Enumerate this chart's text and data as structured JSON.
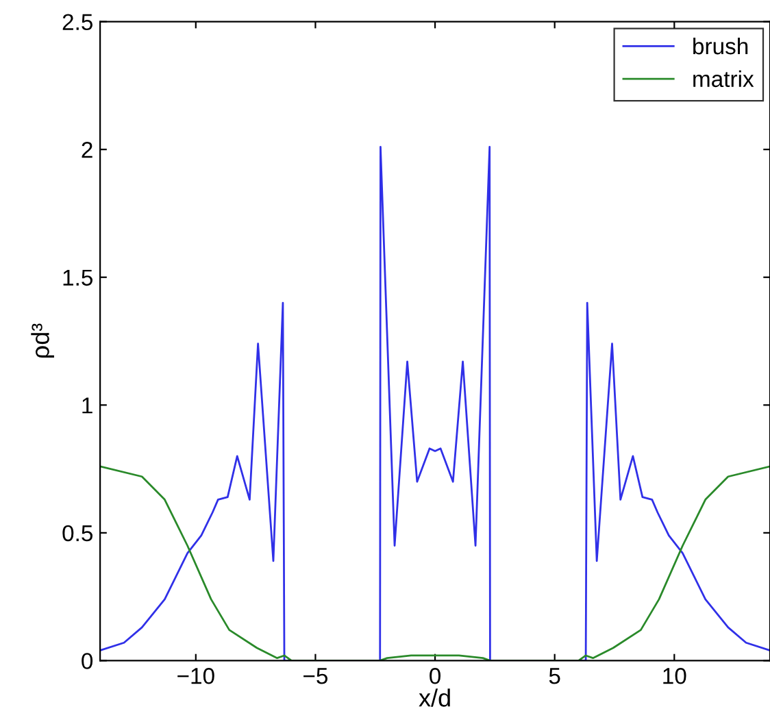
{
  "chart_data": {
    "type": "line",
    "xlabel": "x/d",
    "ylabel": "ρd³",
    "xlim": [
      -14,
      14
    ],
    "ylim": [
      0,
      2.5
    ],
    "xticks": [
      {
        "value": -10,
        "label": "−10"
      },
      {
        "value": -5,
        "label": "−5"
      },
      0,
      5,
      10
    ],
    "yticks": [
      0,
      0.5,
      1,
      1.5,
      2,
      2.5
    ],
    "grid": false,
    "legend": "top right",
    "line_style": "solid",
    "marker": "none",
    "series": [
      {
        "name": "brush",
        "color": "#3030e8",
        "x": [
          -14,
          -13,
          -12.25,
          -11.3,
          -10.35,
          -9.77,
          -9.3,
          -9.07,
          -8.67,
          -8.27,
          -7.75,
          -7.4,
          -6.76,
          -6.36,
          -6.3,
          -2.3,
          -2.28,
          -1.69,
          -1.16,
          -0.75,
          -0.23,
          0,
          0.23,
          0.75,
          1.16,
          1.69,
          2.28,
          2.3,
          6.3,
          6.36,
          6.76,
          7.4,
          7.75,
          8.27,
          8.67,
          9.07,
          9.3,
          9.77,
          10.35,
          11.3,
          12.25,
          13,
          14
        ],
        "values": [
          0.04,
          0.07,
          0.13,
          0.24,
          0.42,
          0.49,
          0.58,
          0.63,
          0.64,
          0.8,
          0.63,
          1.24,
          0.39,
          1.4,
          0,
          0,
          2.01,
          0.45,
          1.17,
          0.7,
          0.83,
          0.82,
          0.83,
          0.7,
          1.17,
          0.45,
          2.01,
          0,
          0,
          1.4,
          0.39,
          1.24,
          0.63,
          0.8,
          0.64,
          0.63,
          0.58,
          0.49,
          0.42,
          0.24,
          0.13,
          0.07,
          0.04
        ]
      },
      {
        "name": "matrix",
        "color": "#2a8a2a",
        "x": [
          -14,
          -12.25,
          -11.3,
          -10.35,
          -9.36,
          -8.6,
          -7.45,
          -6.6,
          -6.3,
          -6,
          -2.3,
          -2,
          -1,
          0,
          1,
          2,
          2.3,
          6,
          6.3,
          6.6,
          7.45,
          8.6,
          9.36,
          10.35,
          11.3,
          12.25,
          14
        ],
        "values": [
          0.76,
          0.72,
          0.63,
          0.45,
          0.24,
          0.12,
          0.05,
          0.01,
          0.02,
          0,
          0,
          0.01,
          0.02,
          0.02,
          0.02,
          0.01,
          0,
          0,
          0.02,
          0.01,
          0.05,
          0.12,
          0.24,
          0.45,
          0.63,
          0.72,
          0.76
        ]
      }
    ]
  }
}
